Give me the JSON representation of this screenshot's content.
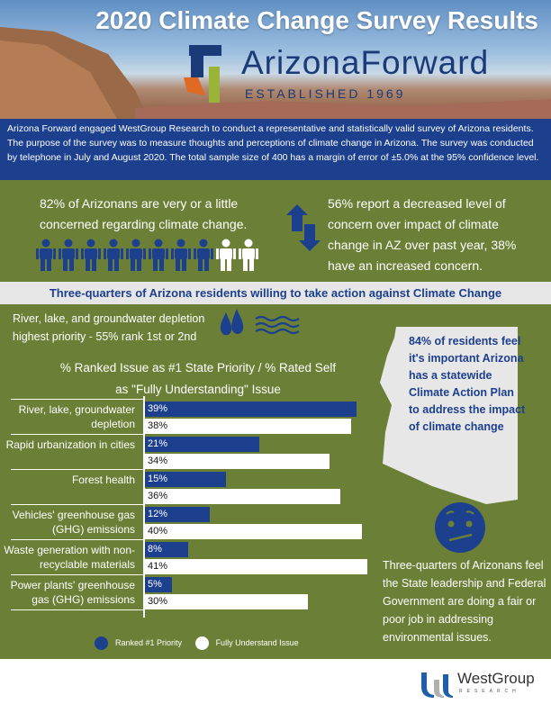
{
  "header": {
    "title": "2020 Climate Change Survey Results",
    "logo_text": "ArizonaForward",
    "logo_tagline": "ESTABLISHED 1969"
  },
  "intro": "Arizona Forward engaged WestGroup Research to conduct a representative and statistically valid survey of Arizona residents. The purpose of the survey was to measure thoughts and perceptions of climate change in Arizona. The survey was conducted by telephone in July and August 2020. The total sample size of 400 has a margin of error of ±5.0% at the 95% confidence level.",
  "stats": {
    "concerned": "82% of Arizonans are very or a little concerned regarding climate change.",
    "concerned_icons": {
      "filled": 8,
      "total": 10,
      "filled_color": "#1c3f8e",
      "empty_color": "#ffffff"
    },
    "concern_change": "56% report a decreased level of concern over impact of climate change in AZ over past year,  38% have an increased concern."
  },
  "banner": "Three-quarters of Arizona residents willing to take action against Climate Change",
  "water_priority": "River, lake, and groundwater depletion highest priority  - 55% rank 1st or 2nd",
  "climate_plan": "84% of residents feel it's important Arizona has a statewide Climate Action Plan to address the impact of climate change",
  "government": "Three-quarters of Arizonans feel the State leadership and Federal Government are doing a fair or poor job in addressing environmental issues.",
  "colors": {
    "green": "#6b8036",
    "blue": "#1c3f8e",
    "band": "#e6e6e6"
  },
  "chart_data": {
    "type": "bar",
    "orientation": "horizontal",
    "title": "% Ranked Issue as #1 State Priority / % Rated Self as \"Fully Understanding\" Issue",
    "categories": [
      "River, lake, groundwater depletion",
      "Rapid urbanization in cities",
      "Forest health",
      "Vehicles' greenhouse gas (GHG) emissions",
      "Waste generation with non-recyclable materials",
      "Power plants' greenhouse gas (GHG) emissions"
    ],
    "series": [
      {
        "name": "Ranked #1 Priority",
        "color": "#1c3f8e",
        "values": [
          39,
          21,
          15,
          12,
          8,
          5
        ],
        "labels": [
          "39%",
          "21%",
          "15%",
          "12%",
          "8%",
          "5%"
        ]
      },
      {
        "name": "Fully Understand Issue",
        "color": "#ffffff",
        "values": [
          38,
          34,
          36,
          40,
          41,
          30
        ],
        "labels": [
          "38%",
          "34%",
          "36%",
          "40%",
          "41%",
          "30%"
        ]
      }
    ],
    "legend": "bottom"
  },
  "footer": {
    "logo_text": "WestGroup",
    "logo_sub": "RESEARCH"
  }
}
